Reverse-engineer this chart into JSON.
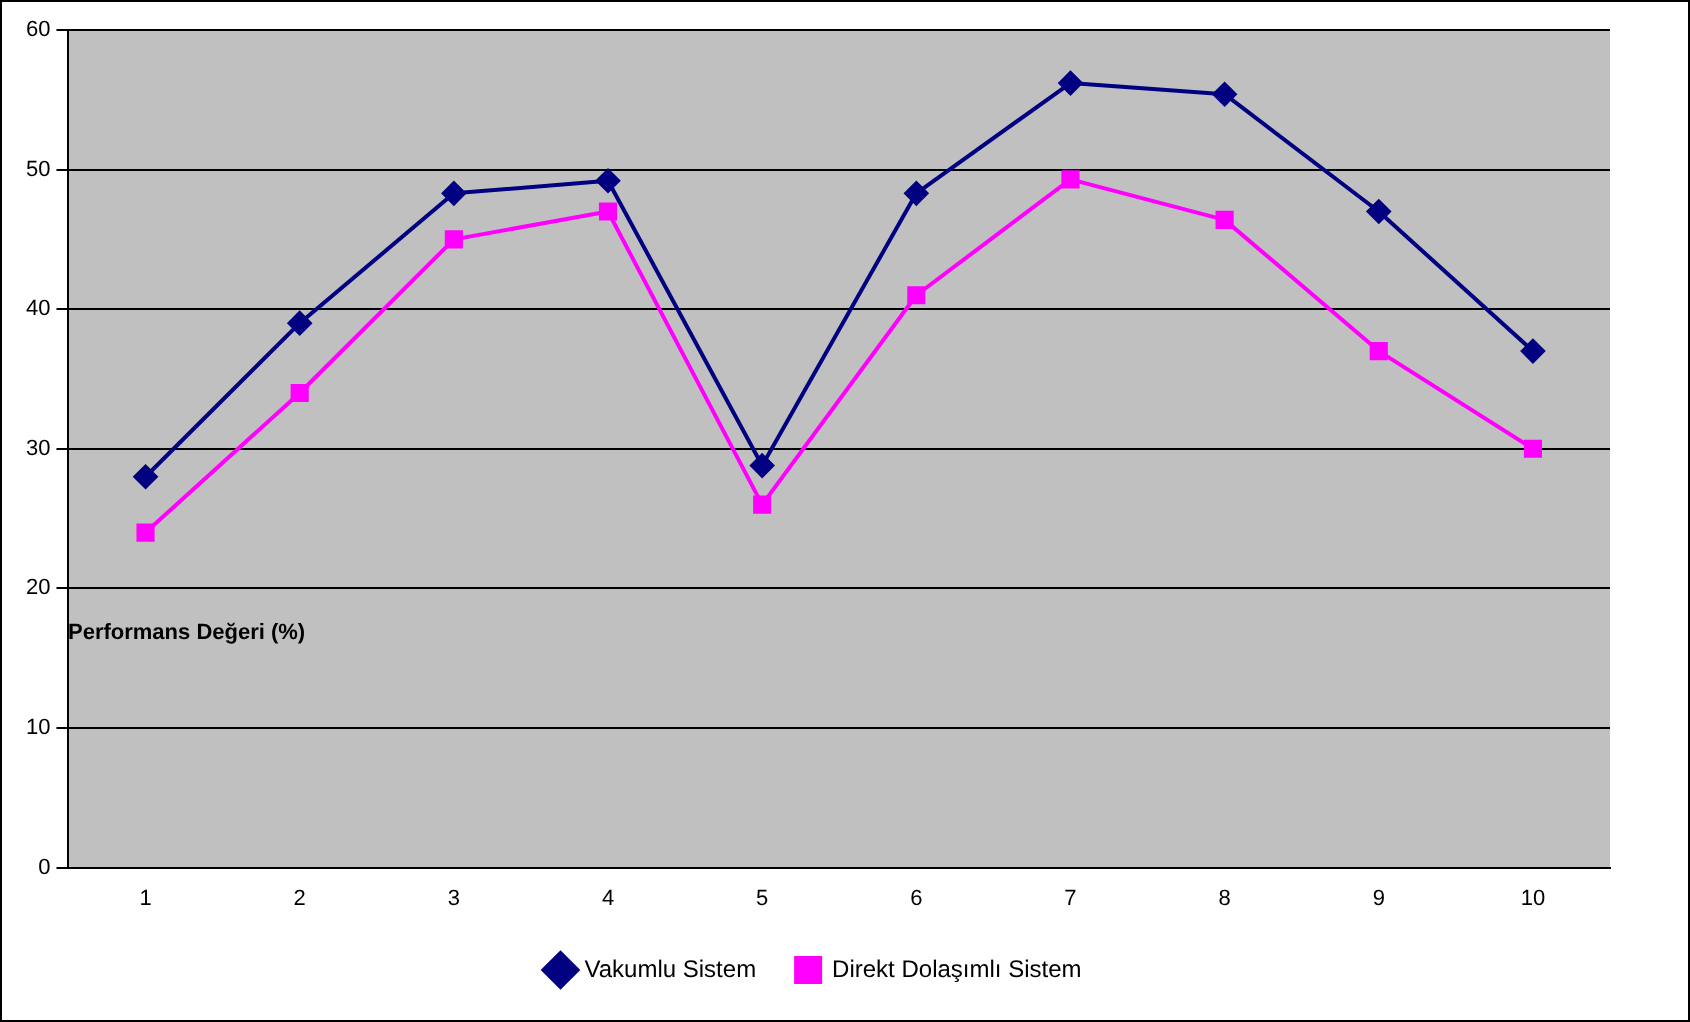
{
  "chart_data": {
    "type": "line",
    "ylabel": "Performans Değeri (%)",
    "categories": [
      "1",
      "2",
      "3",
      "4",
      "5",
      "6",
      "7",
      "8",
      "9",
      "10"
    ],
    "series": [
      {
        "name": "Vakumlu Sistem",
        "color": "#000080",
        "marker": "diamond",
        "values": [
          28,
          39,
          48.3,
          49.2,
          28.8,
          48.3,
          56.2,
          55.4,
          47,
          37
        ]
      },
      {
        "name": "Direkt Dolaşımlı Sistem",
        "color": "#ff00ff",
        "marker": "square",
        "values": [
          24,
          34,
          45,
          47,
          26,
          41,
          49.3,
          46.4,
          37,
          30
        ]
      }
    ],
    "ylim": [
      0,
      60
    ],
    "yticks": [
      0,
      10,
      20,
      30,
      40,
      50,
      60
    ],
    "grid": "y",
    "legend": "bottom",
    "line_style": "solid"
  }
}
